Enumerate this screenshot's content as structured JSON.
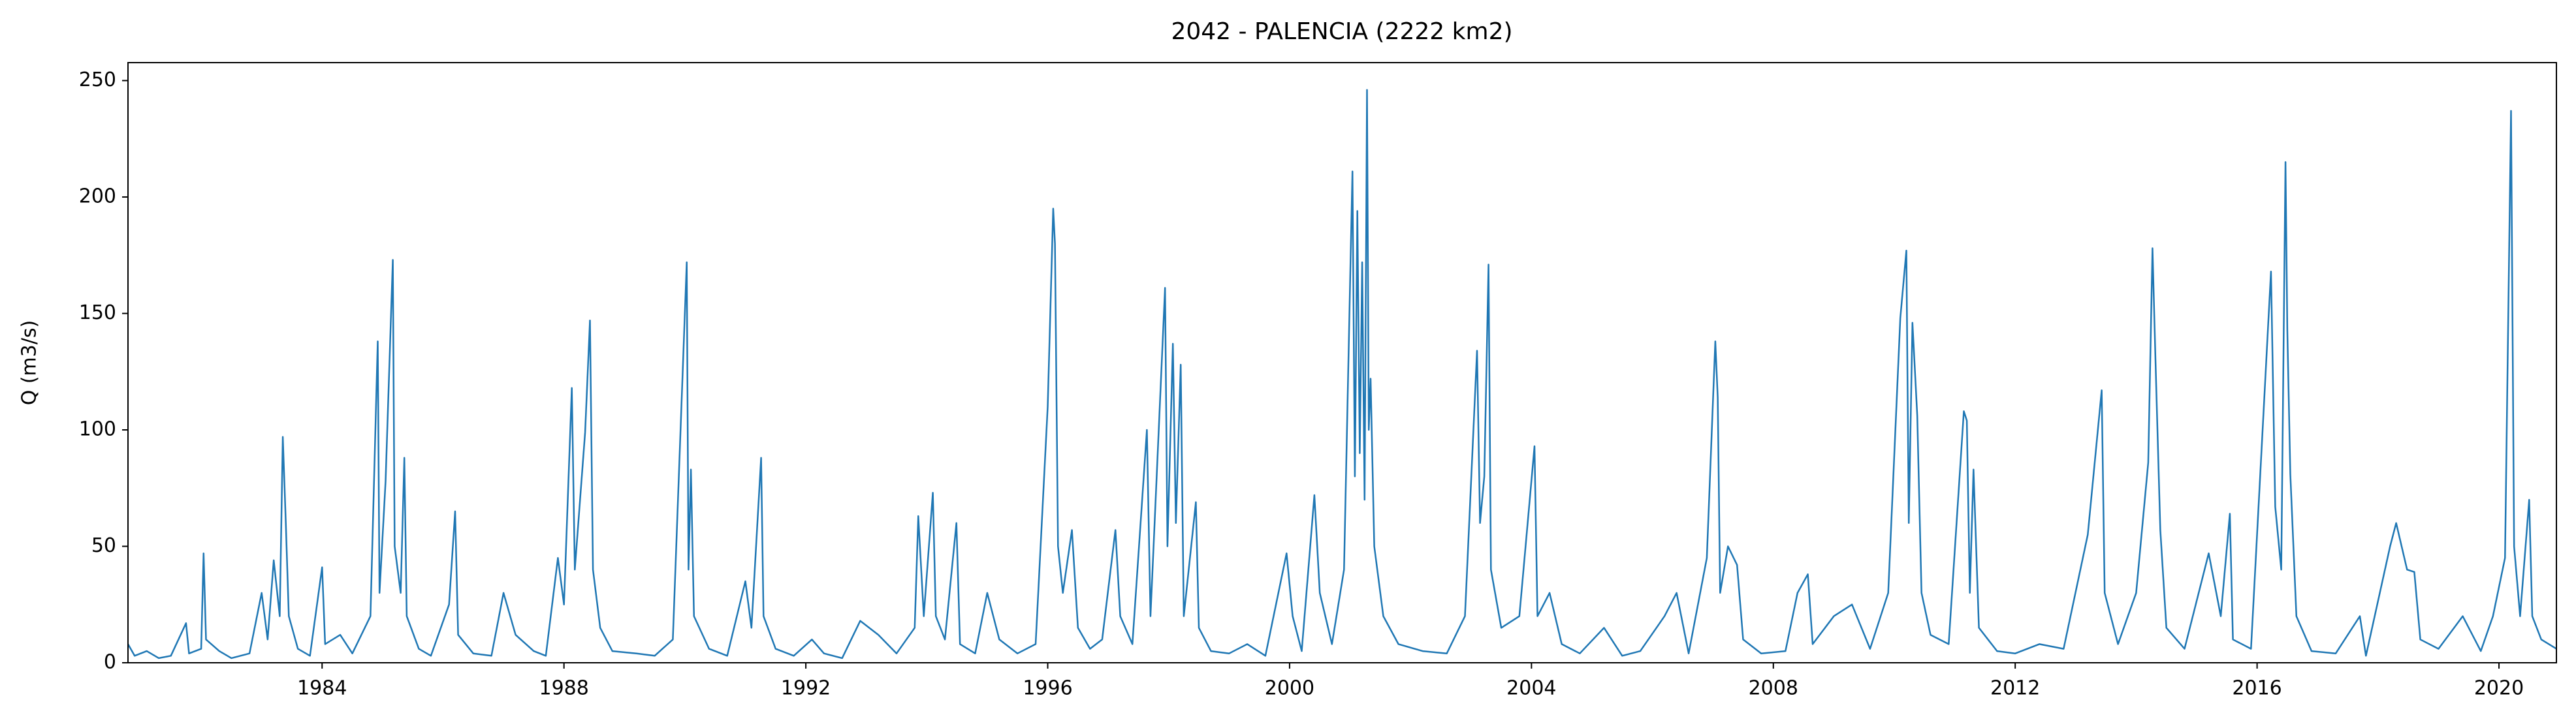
{
  "chart_data": {
    "type": "line",
    "title": "2042 - PALENCIA (2222 km2)",
    "ylabel": "Q (m3/s)",
    "x": [
      1980.79,
      1980.9,
      1981.1,
      1981.3,
      1981.5,
      1981.75,
      1981.8,
      1982.0,
      1982.04,
      1982.08,
      1982.3,
      1982.5,
      1982.8,
      1983.0,
      1983.1,
      1983.2,
      1983.3,
      1983.35,
      1983.4,
      1983.45,
      1983.6,
      1983.8,
      1984.0,
      1984.05,
      1984.3,
      1984.5,
      1984.8,
      1984.92,
      1984.95,
      1985.05,
      1985.17,
      1985.2,
      1985.3,
      1985.36,
      1985.4,
      1985.6,
      1985.8,
      1986.1,
      1986.2,
      1986.25,
      1986.5,
      1986.8,
      1987.0,
      1987.2,
      1987.5,
      1987.7,
      1987.9,
      1988.0,
      1988.13,
      1988.18,
      1988.35,
      1988.43,
      1988.48,
      1988.6,
      1988.8,
      1989.2,
      1989.5,
      1989.8,
      1990.03,
      1990.06,
      1990.1,
      1990.15,
      1990.4,
      1990.7,
      1991.0,
      1991.1,
      1991.26,
      1991.3,
      1991.5,
      1991.8,
      1992.1,
      1992.3,
      1992.6,
      1992.9,
      1993.2,
      1993.5,
      1993.8,
      1993.86,
      1993.95,
      1994.1,
      1994.15,
      1994.3,
      1994.49,
      1994.55,
      1994.8,
      1995.0,
      1995.2,
      1995.5,
      1995.8,
      1996.0,
      1996.09,
      1996.12,
      1996.17,
      1996.25,
      1996.4,
      1996.5,
      1996.7,
      1996.9,
      1997.12,
      1997.2,
      1997.4,
      1997.64,
      1997.7,
      1997.94,
      1997.98,
      1998.07,
      1998.12,
      1998.2,
      1998.25,
      1998.45,
      1998.5,
      1998.7,
      1999.0,
      1999.3,
      1999.6,
      1999.95,
      2000.05,
      2000.2,
      2000.41,
      2000.5,
      2000.7,
      2000.9,
      2001.04,
      2001.08,
      2001.12,
      2001.16,
      2001.2,
      2001.24,
      2001.28,
      2001.31,
      2001.34,
      2001.4,
      2001.55,
      2001.8,
      2002.2,
      2002.6,
      2002.9,
      2003.1,
      2003.15,
      2003.22,
      2003.29,
      2003.33,
      2003.5,
      2003.8,
      2004.05,
      2004.1,
      2004.3,
      2004.5,
      2004.8,
      2005.2,
      2005.5,
      2005.8,
      2006.2,
      2006.4,
      2006.6,
      2006.9,
      2007.04,
      2007.08,
      2007.12,
      2007.25,
      2007.4,
      2007.5,
      2007.8,
      2008.2,
      2008.4,
      2008.57,
      2008.65,
      2009.0,
      2009.3,
      2009.6,
      2009.9,
      2010.1,
      2010.2,
      2010.24,
      2010.3,
      2010.38,
      2010.45,
      2010.6,
      2010.9,
      2011.15,
      2011.2,
      2011.25,
      2011.31,
      2011.4,
      2011.7,
      2012.0,
      2012.4,
      2012.8,
      2013.2,
      2013.43,
      2013.48,
      2013.7,
      2014.0,
      2014.2,
      2014.27,
      2014.32,
      2014.4,
      2014.5,
      2014.8,
      2015.2,
      2015.4,
      2015.55,
      2015.6,
      2015.9,
      2016.23,
      2016.3,
      2016.4,
      2016.47,
      2016.5,
      2016.55,
      2016.65,
      2016.9,
      2017.3,
      2017.7,
      2017.8,
      2018.2,
      2018.3,
      2018.48,
      2018.6,
      2018.7,
      2019.0,
      2019.4,
      2019.7,
      2019.9,
      2020.1,
      2020.2,
      2020.25,
      2020.35,
      2020.5,
      2020.55,
      2020.7,
      2020.95
    ],
    "series": [
      {
        "color": "#1f77b4",
        "values": [
          8,
          3,
          5,
          2,
          3,
          17,
          4,
          6,
          47,
          10,
          5,
          2,
          4,
          30,
          10,
          44,
          20,
          97,
          60,
          20,
          6,
          3,
          41,
          8,
          12,
          4,
          20,
          138,
          30,
          78,
          173,
          50,
          30,
          88,
          20,
          6,
          3,
          25,
          65,
          12,
          4,
          3,
          30,
          12,
          5,
          3,
          45,
          25,
          118,
          40,
          99,
          147,
          40,
          15,
          5,
          4,
          3,
          10,
          172,
          40,
          83,
          20,
          6,
          3,
          35,
          15,
          88,
          20,
          6,
          3,
          10,
          4,
          2,
          18,
          12,
          4,
          15,
          63,
          20,
          73,
          20,
          10,
          60,
          8,
          4,
          30,
          10,
          4,
          8,
          110,
          195,
          180,
          50,
          30,
          57,
          15,
          6,
          10,
          57,
          20,
          8,
          100,
          20,
          161,
          50,
          137,
          60,
          128,
          20,
          69,
          15,
          5,
          4,
          8,
          3,
          47,
          20,
          5,
          72,
          30,
          8,
          40,
          211,
          80,
          194,
          90,
          172,
          70,
          246,
          100,
          122,
          50,
          20,
          8,
          5,
          4,
          20,
          134,
          60,
          80,
          171,
          40,
          15,
          20,
          93,
          20,
          30,
          8,
          4,
          15,
          3,
          5,
          20,
          30,
          4,
          45,
          138,
          114,
          30,
          50,
          42,
          10,
          4,
          5,
          30,
          38,
          8,
          20,
          25,
          6,
          30,
          148,
          177,
          60,
          146,
          106,
          30,
          12,
          8,
          108,
          104,
          30,
          83,
          15,
          5,
          4,
          8,
          6,
          55,
          117,
          30,
          8,
          30,
          86,
          178,
          130,
          57,
          15,
          6,
          47,
          20,
          64,
          10,
          6,
          168,
          67,
          40,
          215,
          143,
          81,
          20,
          5,
          4,
          20,
          3,
          50,
          60,
          40,
          39,
          10,
          6,
          20,
          5,
          20,
          45,
          237,
          50,
          20,
          70,
          20,
          10,
          6
        ]
      }
    ],
    "xlim": [
      1980.79,
      2020.95
    ],
    "xticks": [
      1984,
      1988,
      1992,
      1996,
      2000,
      2004,
      2008,
      2012,
      2016,
      2020
    ],
    "ylim": [
      0,
      257.7
    ],
    "yticks": [
      0,
      50,
      100,
      150,
      200,
      250
    ],
    "grid": false
  }
}
